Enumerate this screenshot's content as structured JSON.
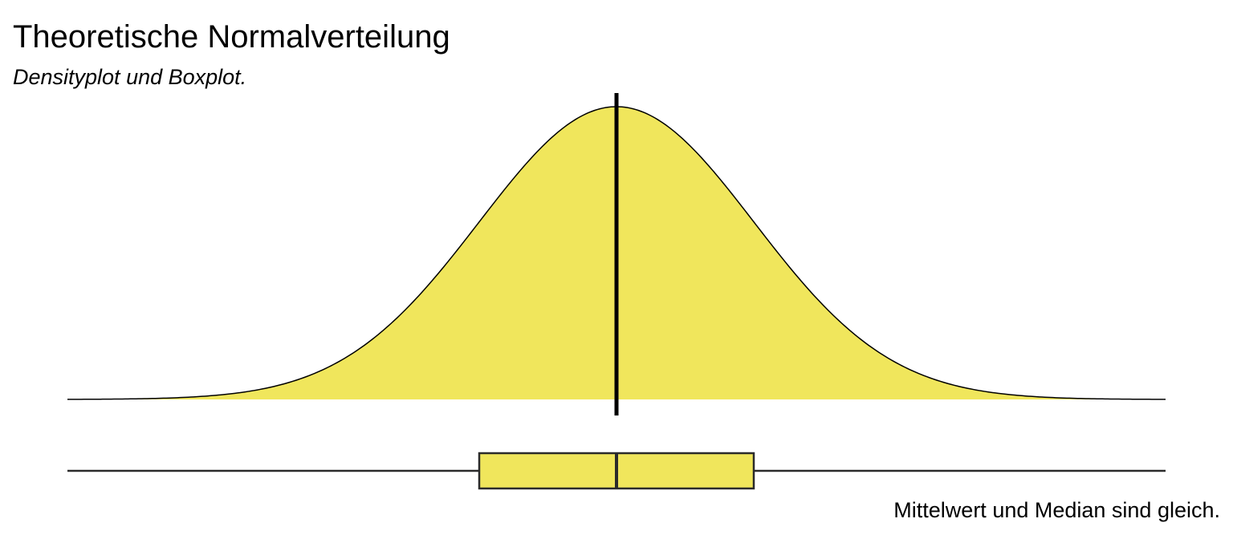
{
  "chart_data": {
    "type": "density",
    "title": "Theoretische Normalverteilung",
    "subtitle": "Densityplot und Boxplot.",
    "caption": "Mittelwert und Median sind gleich.",
    "distribution": {
      "family": "normal",
      "mean": 0,
      "sd": 1,
      "xlim": [
        -4,
        4
      ]
    },
    "mean_line": 0,
    "boxplot": {
      "min": -4,
      "q1": -1,
      "median": 0,
      "q3": 1,
      "max": 4
    },
    "axes_visible": false,
    "grid": false,
    "colors": {
      "fill": "#f0e65c",
      "outline": "#000000",
      "box_outline": "#2b2b2b"
    }
  }
}
